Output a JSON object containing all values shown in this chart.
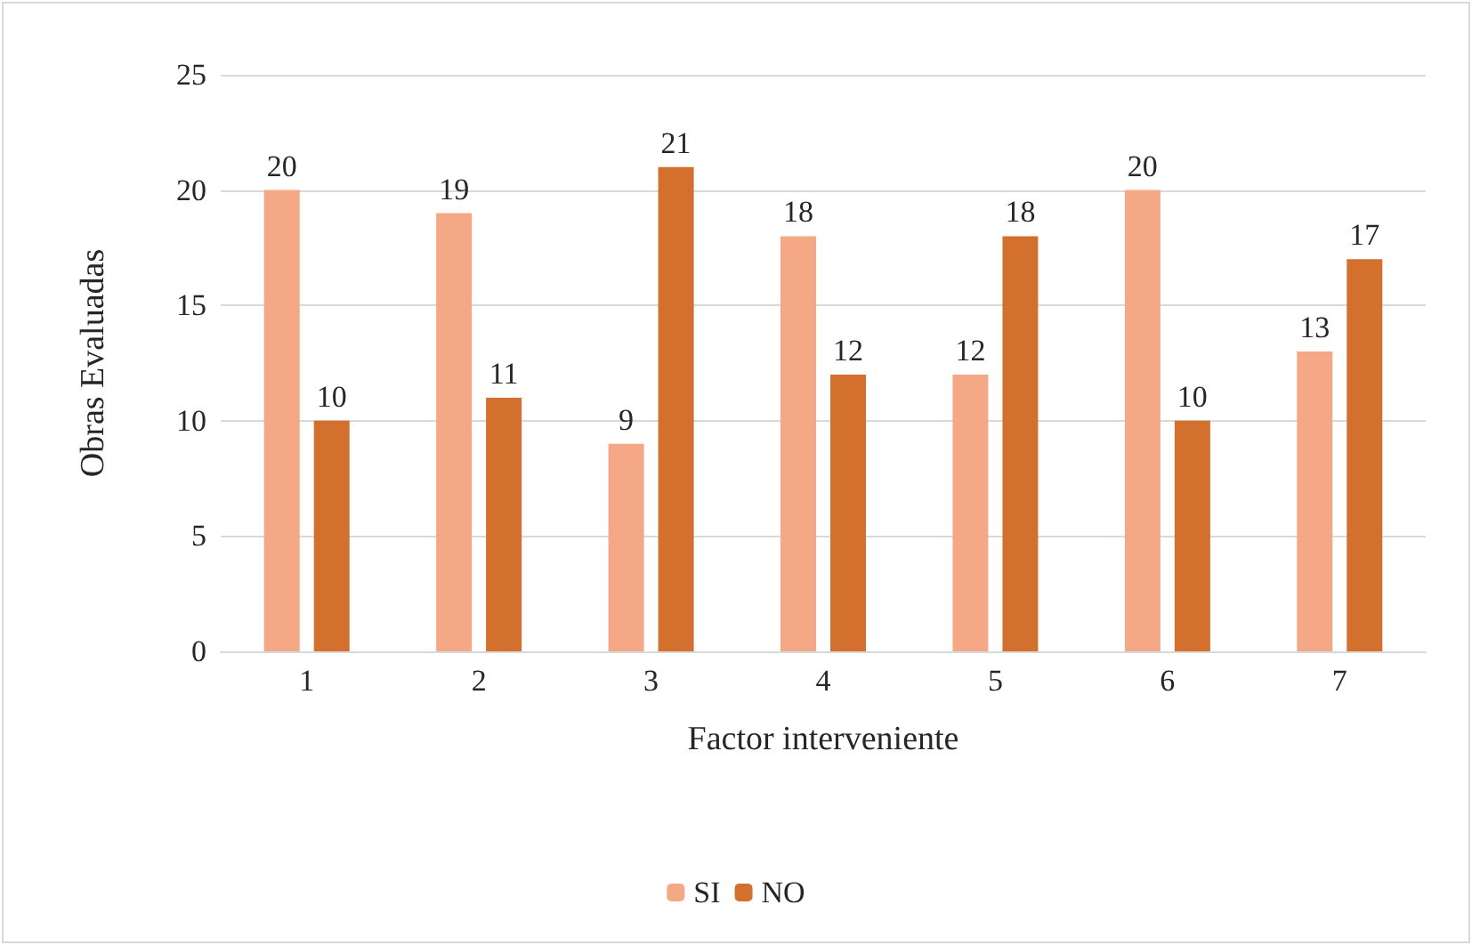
{
  "chart_data": {
    "type": "bar",
    "xlabel": "Factor interveniente",
    "ylabel": "Obras Evaluadas",
    "categories": [
      "1",
      "2",
      "3",
      "4",
      "5",
      "6",
      "7"
    ],
    "series": [
      {
        "name": "SI",
        "color": "#f4a886",
        "values": [
          20,
          19,
          9,
          18,
          12,
          20,
          13
        ]
      },
      {
        "name": "NO",
        "color": "#d4702e",
        "values": [
          10,
          11,
          21,
          12,
          18,
          10,
          17
        ]
      }
    ],
    "ylim": [
      0,
      25
    ],
    "yticks": [
      0,
      5,
      10,
      15,
      20,
      25
    ],
    "grid": "y",
    "legend": "bottom",
    "data_labels": true
  }
}
